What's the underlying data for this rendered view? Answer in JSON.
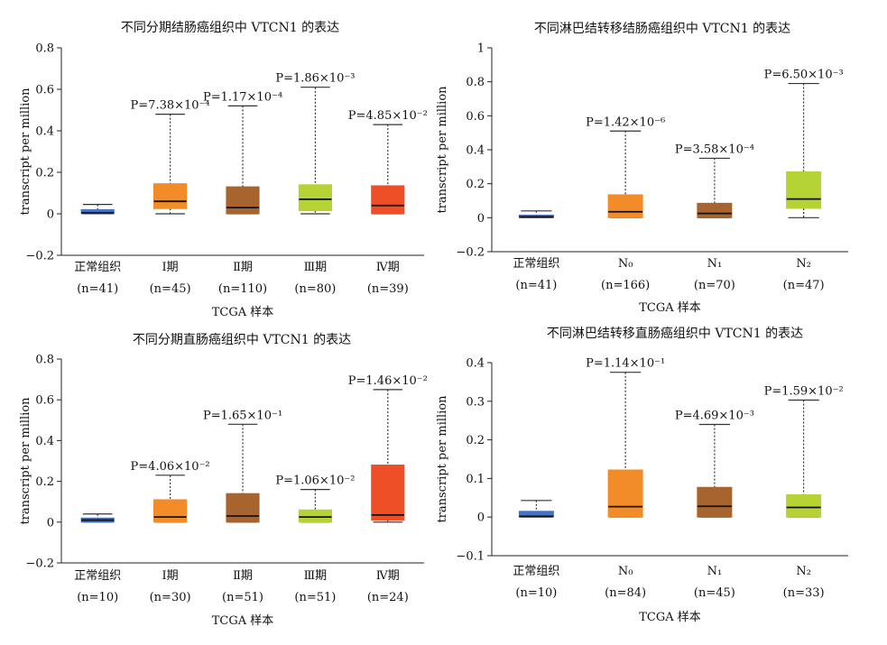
{
  "chart_data": [
    {
      "type": "box",
      "title": "不同分期结肠癌组织中 VTCN1 的表达",
      "xlabel": "TCGA 样本",
      "ylabel": "transcript per million",
      "ylim": [
        -0.2,
        0.8
      ],
      "yticks": [
        "−0.2",
        "0",
        "0.2",
        "0.4",
        "0.6",
        "0.8"
      ],
      "ytick_values": [
        -0.2,
        0,
        0.2,
        0.4,
        0.6,
        0.8
      ],
      "groups": [
        {
          "label": "正常组织",
          "n_label": "(n=41)",
          "color": "#4472c4",
          "min": 0.0,
          "q1": 0.0,
          "median": 0.005,
          "q3": 0.02,
          "max": 0.045,
          "p_label": ""
        },
        {
          "label": "Ⅰ期",
          "n_label": "(n=45)",
          "color": "#f28c28",
          "min": 0.0,
          "q1": 0.025,
          "median": 0.06,
          "q3": 0.145,
          "max": 0.48,
          "p_label": "P=7.38×10⁻⁴"
        },
        {
          "label": "Ⅱ期",
          "n_label": "(n=110)",
          "color": "#a8642e",
          "min": 0.0,
          "q1": 0.0,
          "median": 0.03,
          "q3": 0.13,
          "max": 0.52,
          "p_label": "P=1.17×10⁻⁴"
        },
        {
          "label": "Ⅲ期",
          "n_label": "(n=80)",
          "color": "#b5d334",
          "min": 0.0,
          "q1": 0.015,
          "median": 0.07,
          "q3": 0.14,
          "max": 0.61,
          "p_label": "P=1.86×10⁻³"
        },
        {
          "label": "Ⅳ期",
          "n_label": "(n=39)",
          "color": "#ef4f26",
          "min": 0.0,
          "q1": 0.0,
          "median": 0.04,
          "q3": 0.135,
          "max": 0.43,
          "p_label": "P=4.85×10⁻²"
        }
      ]
    },
    {
      "type": "box",
      "title": "不同淋巴结转移结肠癌组织中 VTCN1 的表达",
      "xlabel": "TCGA 样本",
      "ylabel": "transcript per million",
      "ylim": [
        -0.2,
        1.0
      ],
      "yticks": [
        "−0.2",
        "0",
        "0.2",
        "0.4",
        "0.6",
        "0.8",
        "1"
      ],
      "ytick_values": [
        -0.2,
        0,
        0.2,
        0.4,
        0.6,
        0.8,
        1.0
      ],
      "groups": [
        {
          "label": "正常组织",
          "n_label": "(n=41)",
          "color": "#4472c4",
          "min": 0.0,
          "q1": 0.0,
          "median": 0.005,
          "q3": 0.015,
          "max": 0.04,
          "p_label": ""
        },
        {
          "label": "N₀",
          "n_label": "(n=166)",
          "color": "#f28c28",
          "min": 0.0,
          "q1": 0.0,
          "median": 0.035,
          "q3": 0.135,
          "max": 0.51,
          "p_label": "P=1.42×10⁻⁶"
        },
        {
          "label": "N₁",
          "n_label": "(n=70)",
          "color": "#a8642e",
          "min": 0.0,
          "q1": 0.0,
          "median": 0.025,
          "q3": 0.085,
          "max": 0.35,
          "p_label": "P=3.58×10⁻⁴"
        },
        {
          "label": "N₂",
          "n_label": "(n=47)",
          "color": "#b5d334",
          "min": 0.0,
          "q1": 0.055,
          "median": 0.11,
          "q3": 0.27,
          "max": 0.79,
          "p_label": "P=6.50×10⁻³"
        }
      ]
    },
    {
      "type": "box",
      "title": "不同分期直肠癌组织中 VTCN1 的表达",
      "xlabel": "TCGA 样本",
      "ylabel": "transcript per million",
      "ylim": [
        -0.2,
        0.8
      ],
      "yticks": [
        "−0.2",
        "0",
        "0.2",
        "0.4",
        "0.6",
        "0.8"
      ],
      "ytick_values": [
        -0.2,
        0,
        0.2,
        0.4,
        0.6,
        0.8
      ],
      "groups": [
        {
          "label": "正常组织",
          "n_label": "(n=10)",
          "color": "#4472c4",
          "min": 0.0,
          "q1": 0.0,
          "median": 0.01,
          "q3": 0.02,
          "max": 0.04,
          "p_label": ""
        },
        {
          "label": "Ⅰ期",
          "n_label": "(n=30)",
          "color": "#f28c28",
          "min": 0.0,
          "q1": 0.0,
          "median": 0.025,
          "q3": 0.11,
          "max": 0.23,
          "p_label": "P=4.06×10⁻²"
        },
        {
          "label": "Ⅱ期",
          "n_label": "(n=51)",
          "color": "#a8642e",
          "min": 0.0,
          "q1": 0.0,
          "median": 0.03,
          "q3": 0.14,
          "max": 0.48,
          "p_label": "P=1.65×10⁻¹"
        },
        {
          "label": "Ⅲ期",
          "n_label": "(n=51)",
          "color": "#b5d334",
          "min": 0.0,
          "q1": 0.0,
          "median": 0.025,
          "q3": 0.06,
          "max": 0.16,
          "p_label": "P=1.06×10⁻²"
        },
        {
          "label": "Ⅳ期",
          "n_label": "(n=24)",
          "color": "#ef4f26",
          "min": 0.0,
          "q1": 0.01,
          "median": 0.035,
          "q3": 0.28,
          "max": 0.65,
          "p_label": "P=1.46×10⁻²"
        }
      ]
    },
    {
      "type": "box",
      "title": "不同淋巴结转移直肠癌组织中 VTCN1 的表达",
      "xlabel": "TCGA 样本",
      "ylabel": "transcript per million",
      "ylim": [
        -0.1,
        0.4
      ],
      "yticks": [
        "−0.1",
        "0",
        "0.1",
        "0.2",
        "0.3",
        "0.4"
      ],
      "ytick_values": [
        -0.1,
        0,
        0.1,
        0.2,
        0.3,
        0.4
      ],
      "groups": [
        {
          "label": "正常组织",
          "n_label": "(n=10)",
          "color": "#4472c4",
          "min": 0.0,
          "q1": 0.0,
          "median": 0.002,
          "q3": 0.015,
          "max": 0.043,
          "p_label": ""
        },
        {
          "label": "N₀",
          "n_label": "(n=84)",
          "color": "#f28c28",
          "min": 0.0,
          "q1": 0.0,
          "median": 0.027,
          "q3": 0.122,
          "max": 0.375,
          "p_label": "P=1.14×10⁻¹"
        },
        {
          "label": "N₁",
          "n_label": "(n=45)",
          "color": "#a8642e",
          "min": 0.0,
          "q1": 0.0,
          "median": 0.028,
          "q3": 0.077,
          "max": 0.24,
          "p_label": "P=4.69×10⁻³"
        },
        {
          "label": "N₂",
          "n_label": "(n=33)",
          "color": "#b5d334",
          "min": 0.0,
          "q1": 0.0,
          "median": 0.025,
          "q3": 0.058,
          "max": 0.303,
          "p_label": "P=1.59×10⁻²"
        }
      ]
    }
  ]
}
